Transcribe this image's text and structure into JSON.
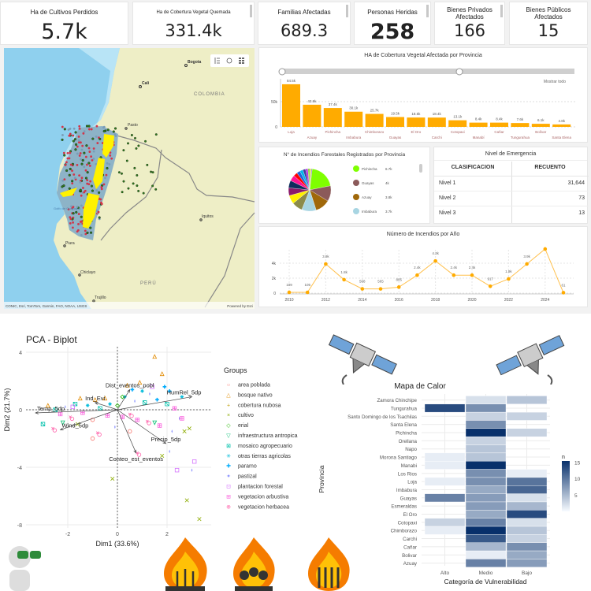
{
  "kpis": [
    {
      "title": "Ha de Cultivos Perdidos",
      "value": "5.7k"
    },
    {
      "title": "Ha de Cobertura Vegetal Quemada",
      "value": "331.4k"
    },
    {
      "title": "Familias Afectadas",
      "value": "689.3"
    },
    {
      "title": "Personas Heridas",
      "value": "258"
    },
    {
      "title": "Bienes Privados Afectados",
      "value": "166"
    },
    {
      "title": "Bienes Públicos Afectados",
      "value": "15"
    }
  ],
  "map": {
    "labels": {
      "bogota": "Bogota",
      "cali": "Cali",
      "colombia": "COLOMBIA",
      "pasto": "Pasto",
      "golfo": "Golfo de Guayaquil",
      "iquitos": "Iquitos",
      "piura": "Piura",
      "chiclayo": "Chiclayo",
      "peru": "PERÚ",
      "trujillo": "Trujillo"
    },
    "attribution": "CONIC, Esri, TomTom, Garmin, FAO, NOAA, USGS",
    "powered": "Powered by Esri",
    "tools": [
      "legend-icon",
      "basemap-icon",
      "grid-icon"
    ]
  },
  "chart_data": [
    {
      "type": "bar",
      "title": "HA de Cobertura Vegetal Afectada por Provincia",
      "reset_label": "Mostrar todo",
      "categories": [
        "Loja",
        "Azuay",
        "Pichincha",
        "Imbabura",
        "Chimborazo",
        "Guayas",
        "El Oro",
        "Carchi",
        "Cotopaxi",
        "Manabí",
        "Cañar",
        "Tungurahua",
        "Bolívar",
        "Santa Elena"
      ],
      "values": [
        84500,
        43900,
        37400,
        30100,
        25700,
        19500,
        18500,
        18400,
        13100,
        8400,
        8400,
        7600,
        6100,
        4800
      ],
      "labels": [
        "84.5k",
        "43.9k",
        "37.4k",
        "30.1k",
        "25.7k",
        "19.5k",
        "18.5k",
        "18.4k",
        "13.1k",
        "8.4k",
        "8.4k",
        "7.6k",
        "6.1k",
        "4.8k"
      ],
      "yticks": [
        "0",
        "50k"
      ],
      "color": "#FFAB00"
    },
    {
      "type": "pie",
      "title": "N° de Incendios Forestales Registrados por Provincia",
      "slices": [
        {
          "name": "Pichincha",
          "label": "6.7k",
          "value": 6700,
          "color": "#7FFF00"
        },
        {
          "name": "Guayas",
          "label": "4k",
          "value": 4000,
          "color": "#8B5A5A"
        },
        {
          "name": "Azuay",
          "label": "3.8k",
          "value": 3800,
          "color": "#A0680A"
        },
        {
          "name": "Imbabura",
          "label": "3.7k",
          "value": 3700,
          "color": "#A8D5E2"
        }
      ],
      "other_slices": [
        {
          "value": 2700,
          "color": "#8B8B4A"
        },
        {
          "value": 2200,
          "color": "#FFF200"
        },
        {
          "value": 2000,
          "color": "#8B1A6B"
        },
        {
          "value": 1900,
          "color": "#0E2C5C"
        },
        {
          "value": 1500,
          "color": "#FF1493"
        },
        {
          "value": 1000,
          "color": "#FF0000"
        },
        {
          "value": 900,
          "color": "#1E64D6"
        },
        {
          "value": 800,
          "color": "#00B7EB"
        },
        {
          "value": 700,
          "color": "#3C3C9C"
        },
        {
          "value": 600,
          "color": "#B22CE0"
        },
        {
          "value": 500,
          "color": "#88D040"
        },
        {
          "value": 400,
          "color": "#E0E040"
        },
        {
          "value": 200,
          "color": "#6A5ACD"
        }
      ]
    },
    {
      "type": "line",
      "title": "Número de Incendios por Año",
      "x": [
        2010,
        2011,
        2012,
        2013,
        2014,
        2015,
        2016,
        2017,
        2018,
        2019,
        2020,
        2021,
        2022,
        2023,
        2024,
        2025
      ],
      "y": [
        109,
        105,
        3900,
        1800,
        568,
        565,
        805,
        2400,
        4300,
        2400,
        2400,
        917,
        1900,
        3900,
        5900,
        61
      ],
      "labels": [
        "109",
        "105",
        "3.9k",
        "1.8k",
        "568",
        "565",
        "805",
        "2.4k",
        "4.3k",
        "2.4k",
        "2.4k",
        "917",
        "1.9k",
        "3.9k",
        "",
        "61"
      ],
      "xticks": [
        "2010",
        "2012",
        "2014",
        "2016",
        "2018",
        "2020",
        "2022",
        "2024"
      ],
      "yticks": [
        "0",
        "2k",
        "4k"
      ],
      "color": "#FFAB00"
    },
    {
      "type": "scatter",
      "title": "PCA - Biplot",
      "xlabel": "Dim1 (33.6%)",
      "ylabel": "Dim2 (21.7%)",
      "xticks": [
        -2,
        0,
        2
      ],
      "yticks": [
        4,
        0,
        -4,
        -8
      ],
      "xlim": [
        -3.7,
        3.8
      ],
      "ylim": [
        -8.2,
        4.3
      ],
      "legend_title": "Groups",
      "groups": [
        {
          "name": "area poblada",
          "color": "#F8766D",
          "glyph": "○"
        },
        {
          "name": "bosque nativo",
          "color": "#E18A00",
          "glyph": "△"
        },
        {
          "name": "cobertura nubosa",
          "color": "#BE9C00",
          "glyph": "+"
        },
        {
          "name": "cultivo",
          "color": "#8CAB00",
          "glyph": "×"
        },
        {
          "name": "erial",
          "color": "#24B700",
          "glyph": "◇"
        },
        {
          "name": "infraestructura antropica",
          "color": "#00BE70",
          "glyph": "▽"
        },
        {
          "name": "mosaico agropecuario",
          "color": "#00C1AB",
          "glyph": "⊠"
        },
        {
          "name": "otras tierras agricolas",
          "color": "#00BBDA",
          "glyph": "✳"
        },
        {
          "name": "paramo",
          "color": "#00ACFC",
          "glyph": "✚"
        },
        {
          "name": "pastizal",
          "color": "#8B93FF",
          "glyph": "✦"
        },
        {
          "name": "plantacion forestal",
          "color": "#D575FE",
          "glyph": "⊡"
        },
        {
          "name": "vegetacion arbustiva",
          "color": "#F962DD",
          "glyph": "⊞"
        },
        {
          "name": "vegetacion herbacea",
          "color": "#FF65AC",
          "glyph": "⊗"
        }
      ],
      "points": [
        [
          -2.8,
          0.3,
          1
        ],
        [
          -2.5,
          0,
          6
        ],
        [
          -2.3,
          -0.3,
          11
        ],
        [
          -2.1,
          0.2,
          9
        ],
        [
          -1.9,
          -0.5,
          12
        ],
        [
          -1.7,
          0.4,
          6
        ],
        [
          -1.5,
          0.8,
          1
        ],
        [
          -1.4,
          -0.2,
          11
        ],
        [
          -1.2,
          0.3,
          7
        ],
        [
          -1,
          -0.7,
          0
        ],
        [
          -0.9,
          0.7,
          1
        ],
        [
          -0.8,
          -1.6,
          12
        ],
        [
          -0.7,
          0.1,
          6
        ],
        [
          -0.5,
          0.8,
          1
        ],
        [
          -0.4,
          -0.4,
          11
        ],
        [
          -0.3,
          0.4,
          7
        ],
        [
          -0.1,
          -1.2,
          9
        ],
        [
          0,
          0.3,
          4
        ],
        [
          0.2,
          -0.5,
          11
        ],
        [
          0.3,
          0.9,
          7
        ],
        [
          0.4,
          1.7,
          1
        ],
        [
          0.5,
          -0.3,
          12
        ],
        [
          0.6,
          1.4,
          8
        ],
        [
          0.7,
          0.6,
          9
        ],
        [
          0.8,
          -0.7,
          11
        ],
        [
          0.9,
          1.9,
          1
        ],
        [
          1,
          1.3,
          7
        ],
        [
          1.1,
          0.5,
          6
        ],
        [
          1.2,
          -0.8,
          12
        ],
        [
          1.3,
          1.1,
          9
        ],
        [
          1.4,
          1.6,
          10
        ],
        [
          1.5,
          3.7,
          1
        ],
        [
          1.6,
          0.7,
          8
        ],
        [
          1.7,
          -1.1,
          11
        ],
        [
          1.8,
          2.5,
          1
        ],
        [
          1.9,
          1.6,
          8
        ],
        [
          2,
          0.4,
          6
        ],
        [
          2.1,
          1.3,
          8
        ],
        [
          2.2,
          -1.5,
          9
        ],
        [
          2.3,
          0.1,
          11
        ],
        [
          2.4,
          -4.2,
          10
        ],
        [
          2.5,
          -0.6,
          9
        ],
        [
          2.6,
          0.9,
          7
        ],
        [
          2.7,
          -1.5,
          3
        ],
        [
          2.8,
          -6.3,
          3
        ],
        [
          2.9,
          -1.3,
          3
        ],
        [
          3,
          -4.2,
          9
        ],
        [
          3.1,
          -3.6,
          10
        ],
        [
          3.3,
          -7.6,
          3
        ],
        [
          -3,
          -1,
          6
        ],
        [
          -2.6,
          -1.3,
          12
        ],
        [
          -1.6,
          -1,
          3
        ],
        [
          -0.2,
          -4.8,
          3
        ],
        [
          0.8,
          -3,
          12
        ],
        [
          1.8,
          -3.2,
          3
        ],
        [
          2.1,
          -2.9,
          9
        ],
        [
          -2.2,
          -0.9,
          5
        ],
        [
          0.5,
          -1.5,
          0
        ],
        [
          -1,
          -2,
          0
        ],
        [
          1.5,
          -0.9,
          5
        ],
        [
          -1.8,
          0.2,
          10
        ],
        [
          0.2,
          0.9,
          4
        ],
        [
          2.6,
          -0.6,
          11
        ]
      ],
      "arrows": [
        {
          "name": "Temp_5dp",
          "x": -3.3,
          "y": -0.22
        },
        {
          "name": "Wind_5dp",
          "x": -2.3,
          "y": -1.4
        },
        {
          "name": "Ind_Evi",
          "x": -0.9,
          "y": 0.5
        },
        {
          "name": "Dist_eventos_pobl",
          "x": 0.5,
          "y": 1.4
        },
        {
          "name": "HumRel_5dp",
          "x": 3.0,
          "y": 0.9
        },
        {
          "name": "Precip_5dp",
          "x": 1.95,
          "y": -2.35
        },
        {
          "name": "Conteo_est_eventos",
          "x": 0.75,
          "y": -3.0
        }
      ]
    },
    {
      "type": "heatmap",
      "title": "Mapa de Calor",
      "xlabel": "Categoría de Vulnerabilidad",
      "ylabel": "Provincia",
      "legend_title": "n",
      "legend_ticks": [
        5,
        10,
        15
      ],
      "range": [
        0,
        15
      ],
      "low_color": "#F7FBFF",
      "high_color": "#08306B",
      "columns": [
        "Alto",
        "Medio",
        "Bajo"
      ],
      "rows": [
        "Zamora Chinchipe",
        "Tungurahua",
        "Santo Domingo de los Tsachilas",
        "Santa Elena",
        "Pichincha",
        "Orellana",
        "Napo",
        "Morona Santiago",
        "Manabi",
        "Los Rios",
        "Loja",
        "Imbabura",
        "Guayas",
        "Esmeraldas",
        "El Oro",
        "Cotopaxi",
        "Chimborazo",
        "Carchi",
        "Cañar",
        "Bolivar",
        "Azuay"
      ],
      "values": [
        [
          null,
          2,
          4
        ],
        [
          13,
          8,
          null
        ],
        [
          null,
          3,
          3
        ],
        [
          null,
          8,
          null
        ],
        [
          null,
          15,
          3
        ],
        [
          null,
          3,
          null
        ],
        [
          null,
          4,
          null
        ],
        [
          1,
          4,
          null
        ],
        [
          1,
          15,
          null
        ],
        [
          null,
          8,
          1
        ],
        [
          1,
          8,
          10
        ],
        [
          null,
          6,
          11
        ],
        [
          9,
          7,
          2
        ],
        [
          null,
          7,
          5
        ],
        [
          null,
          6,
          13
        ],
        [
          3,
          9,
          2
        ],
        [
          1,
          15,
          4
        ],
        [
          null,
          12,
          3
        ],
        [
          null,
          5,
          8
        ],
        [
          null,
          1,
          6
        ],
        [
          null,
          9,
          7
        ]
      ]
    }
  ],
  "table": {
    "title": "Nivel de Emergencia",
    "headers": [
      "CLASIFICACION",
      "RECUENTO"
    ],
    "rows": [
      [
        "Nivel 1",
        "31,644"
      ],
      [
        "Nivel 2",
        "73"
      ],
      [
        "Nivel 3",
        "13"
      ]
    ]
  }
}
